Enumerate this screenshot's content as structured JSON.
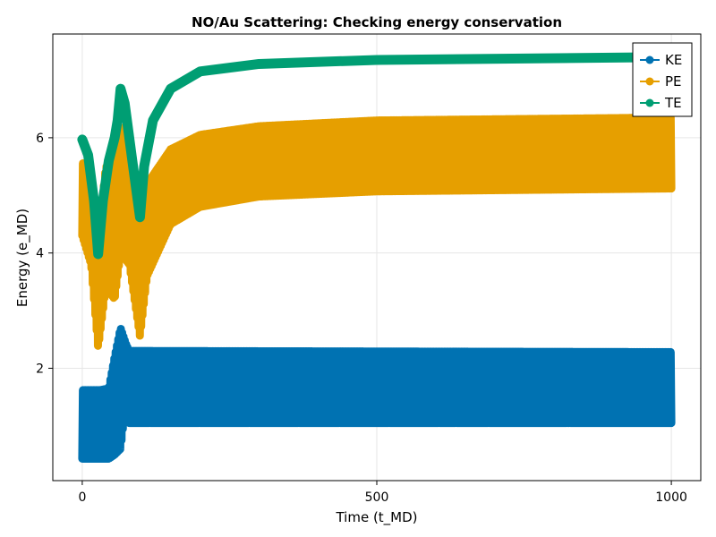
{
  "chart_data": {
    "type": "scatter",
    "title": "NO/Au Scattering: Checking energy conservation",
    "xlabel": "Time (t_MD)",
    "ylabel": "Energy (e_MD)",
    "xlim": [
      -50,
      1050
    ],
    "ylim": [
      0.05,
      7.8
    ],
    "xticks": [
      0,
      500,
      1000
    ],
    "yticks": [
      2,
      4,
      6
    ],
    "grid": true,
    "legend_position": "top-right",
    "series": [
      {
        "name": "KE",
        "color": "#0072b2",
        "band": [
          {
            "x": 0,
            "lo": 0.43,
            "hi": 1.62
          },
          {
            "x": 30,
            "lo": 0.43,
            "hi": 1.62
          },
          {
            "x": 45,
            "lo": 0.43,
            "hi": 1.65
          },
          {
            "x": 55,
            "lo": 0.5,
            "hi": 2.2
          },
          {
            "x": 65,
            "lo": 0.6,
            "hi": 2.7
          },
          {
            "x": 75,
            "lo": 1.5,
            "hi": 2.4
          },
          {
            "x": 80,
            "lo": 1.05,
            "hi": 2.3
          },
          {
            "x": 1000,
            "lo": 1.05,
            "hi": 2.28
          }
        ]
      },
      {
        "name": "PE",
        "color": "#e69f00",
        "band": [
          {
            "x": 0,
            "lo": 4.3,
            "hi": 5.6
          },
          {
            "x": 15,
            "lo": 3.8,
            "hi": 5.0
          },
          {
            "x": 27,
            "lo": 2.35,
            "hi": 4.2
          },
          {
            "x": 40,
            "lo": 3.4,
            "hi": 5.5
          },
          {
            "x": 55,
            "lo": 3.2,
            "hi": 5.5
          },
          {
            "x": 65,
            "lo": 4.0,
            "hi": 6.2
          },
          {
            "x": 80,
            "lo": 3.8,
            "hi": 5.6
          },
          {
            "x": 98,
            "lo": 2.55,
            "hi": 4.5
          },
          {
            "x": 110,
            "lo": 3.6,
            "hi": 5.2
          },
          {
            "x": 150,
            "lo": 4.5,
            "hi": 5.8
          },
          {
            "x": 200,
            "lo": 4.8,
            "hi": 6.05
          },
          {
            "x": 300,
            "lo": 4.98,
            "hi": 6.2
          },
          {
            "x": 500,
            "lo": 5.07,
            "hi": 6.3
          },
          {
            "x": 1000,
            "lo": 5.12,
            "hi": 6.35
          }
        ]
      },
      {
        "name": "TE",
        "color": "#009e73",
        "line": [
          {
            "x": 0,
            "y": 5.97
          },
          {
            "x": 10,
            "y": 5.7
          },
          {
            "x": 20,
            "y": 4.9
          },
          {
            "x": 27,
            "y": 3.98
          },
          {
            "x": 35,
            "y": 4.9
          },
          {
            "x": 45,
            "y": 5.6
          },
          {
            "x": 55,
            "y": 6.0
          },
          {
            "x": 60,
            "y": 6.3
          },
          {
            "x": 65,
            "y": 6.85
          },
          {
            "x": 72,
            "y": 6.6
          },
          {
            "x": 85,
            "y": 5.6
          },
          {
            "x": 98,
            "y": 4.62
          },
          {
            "x": 105,
            "y": 5.5
          },
          {
            "x": 120,
            "y": 6.3
          },
          {
            "x": 150,
            "y": 6.85
          },
          {
            "x": 200,
            "y": 7.15
          },
          {
            "x": 300,
            "y": 7.28
          },
          {
            "x": 500,
            "y": 7.35
          },
          {
            "x": 1000,
            "y": 7.4
          }
        ]
      }
    ]
  }
}
